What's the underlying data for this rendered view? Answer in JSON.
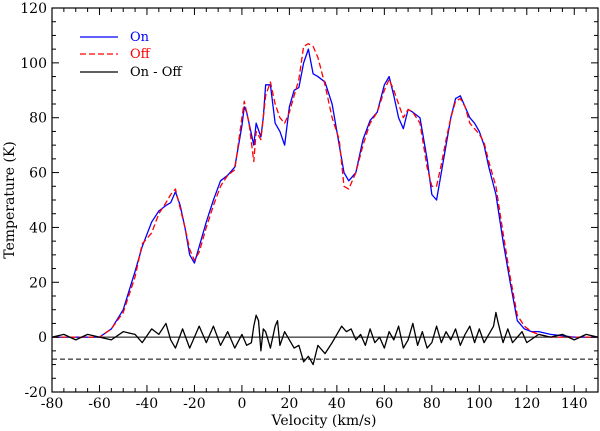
{
  "chart_data": {
    "type": "line",
    "xlabel": "Velocity (km/s)",
    "ylabel": "Temperature (K)",
    "xlim": [
      -80,
      150
    ],
    "ylim": [
      -20,
      120
    ],
    "xticks": [
      -80,
      -60,
      -40,
      -20,
      0,
      20,
      40,
      60,
      80,
      100,
      120,
      140
    ],
    "yticks": [
      -20,
      0,
      20,
      40,
      60,
      80,
      100,
      120
    ],
    "legend_placement": "top-left",
    "reference_lines": [
      {
        "y": 0,
        "style": "solid",
        "color": "#000000"
      },
      {
        "y": -8,
        "style": "dashed",
        "color": "#000000"
      }
    ],
    "series": [
      {
        "name": "On",
        "color": "#0000ff",
        "style": "solid",
        "x": [
          -80,
          -70,
          -60,
          -55,
          -50,
          -45,
          -42,
          -38,
          -35,
          -32,
          -30,
          -28,
          -26,
          -24,
          -22,
          -20,
          -18,
          -15,
          -12,
          -9,
          -6,
          -3,
          0,
          1,
          2,
          3,
          5,
          6,
          8,
          9,
          10,
          12,
          14,
          16,
          18,
          20,
          22,
          24,
          26,
          28,
          30,
          32,
          35,
          38,
          41,
          43,
          45,
          48,
          51,
          54,
          57,
          60,
          62,
          64,
          66,
          68,
          70,
          72,
          75,
          78,
          80,
          82,
          84,
          86,
          88,
          90,
          92,
          94,
          96,
          98,
          100,
          102,
          104,
          107,
          110,
          113,
          116,
          119,
          122,
          125,
          130,
          140,
          150
        ],
        "y": [
          0,
          0,
          0,
          3,
          10,
          24,
          33,
          42,
          46,
          48,
          49,
          53,
          48,
          40,
          30,
          27,
          33,
          42,
          50,
          57,
          59,
          62,
          77,
          84,
          82,
          78,
          70,
          78,
          73,
          80,
          92,
          92,
          78,
          75,
          70,
          84,
          90,
          91,
          100,
          105,
          96,
          95,
          93,
          85,
          70,
          60,
          57,
          60,
          72,
          79,
          82,
          92,
          95,
          88,
          80,
          76,
          83,
          82,
          80,
          65,
          52,
          50,
          60,
          70,
          80,
          87,
          88,
          84,
          80,
          78,
          75,
          70,
          62,
          52,
          35,
          20,
          6,
          3,
          2,
          2,
          1,
          0,
          0
        ]
      },
      {
        "name": "Off",
        "color": "#ff0000",
        "style": "dashed",
        "x": [
          -80,
          -70,
          -60,
          -55,
          -50,
          -45,
          -42,
          -38,
          -35,
          -32,
          -30,
          -28,
          -26,
          -24,
          -22,
          -20,
          -18,
          -15,
          -12,
          -9,
          -6,
          -3,
          0,
          1,
          2,
          3,
          5,
          6,
          8,
          9,
          10,
          12,
          14,
          16,
          18,
          20,
          22,
          24,
          26,
          28,
          30,
          32,
          35,
          38,
          41,
          43,
          45,
          48,
          51,
          54,
          57,
          60,
          62,
          64,
          66,
          68,
          70,
          72,
          75,
          78,
          80,
          82,
          84,
          86,
          88,
          90,
          92,
          94,
          96,
          98,
          100,
          102,
          104,
          107,
          110,
          113,
          116,
          119,
          122,
          125,
          130,
          140,
          150
        ],
        "y": [
          0,
          0,
          0,
          3,
          9,
          22,
          34,
          38,
          45,
          49,
          52,
          54,
          47,
          40,
          32,
          28,
          31,
          40,
          48,
          55,
          59,
          61,
          80,
          86,
          82,
          78,
          64,
          75,
          72,
          80,
          88,
          93,
          85,
          80,
          78,
          82,
          88,
          94,
          106,
          107,
          106,
          102,
          92,
          80,
          72,
          55,
          54,
          60,
          70,
          78,
          82,
          90,
          94,
          90,
          85,
          80,
          83,
          82,
          78,
          62,
          55,
          55,
          63,
          72,
          80,
          86,
          87,
          84,
          78,
          76,
          74,
          71,
          64,
          55,
          38,
          22,
          8,
          4,
          2,
          1,
          0,
          0,
          0
        ]
      },
      {
        "name": "On - Off",
        "color": "#000000",
        "style": "solid",
        "x": [
          -80,
          -75,
          -70,
          -65,
          -60,
          -55,
          -50,
          -45,
          -42,
          -38,
          -35,
          -32,
          -30,
          -28,
          -25,
          -22,
          -20,
          -18,
          -15,
          -12,
          -9,
          -6,
          -3,
          0,
          2,
          4,
          5,
          6,
          7,
          8,
          9,
          10,
          12,
          14,
          15,
          16,
          18,
          20,
          22,
          24,
          26,
          28,
          30,
          32,
          35,
          38,
          40,
          42,
          44,
          46,
          48,
          50,
          52,
          54,
          56,
          58,
          60,
          62,
          64,
          66,
          68,
          70,
          72,
          74,
          76,
          78,
          80,
          82,
          84,
          86,
          88,
          90,
          92,
          94,
          96,
          98,
          100,
          102,
          104,
          106,
          107,
          108,
          110,
          112,
          114,
          116,
          118,
          120,
          125,
          130,
          135,
          140,
          145,
          150
        ],
        "y": [
          0,
          1,
          -1,
          1,
          0,
          -1,
          2,
          1,
          -2,
          3,
          1,
          5,
          -1,
          -4,
          3,
          -4,
          0,
          4,
          -2,
          4,
          -3,
          2,
          -4,
          1,
          -3,
          -2,
          4,
          8,
          6,
          -5,
          3,
          2,
          -4,
          4,
          6,
          -3,
          2,
          -1,
          -4,
          -3,
          -9,
          -7,
          -10,
          -3,
          -6,
          -2,
          1,
          4,
          2,
          3,
          -1,
          1,
          -3,
          3,
          -2,
          0,
          -4,
          2,
          -1,
          4,
          -4,
          -1,
          5,
          -3,
          2,
          -4,
          -2,
          4,
          -2,
          2,
          -1,
          3,
          -3,
          1,
          4,
          -2,
          3,
          -2,
          1,
          4,
          9,
          5,
          -2,
          3,
          -2,
          0,
          2,
          -2,
          1,
          0,
          1,
          -1,
          1,
          0
        ]
      }
    ]
  }
}
